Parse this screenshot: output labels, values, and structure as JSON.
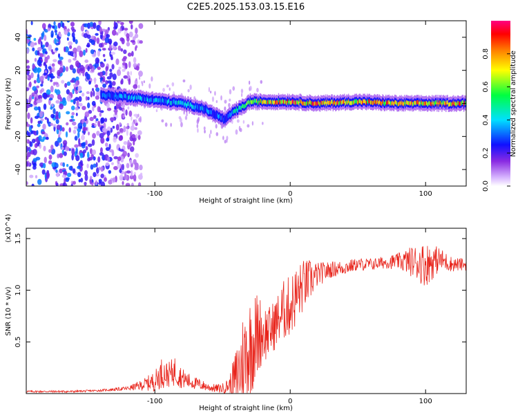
{
  "page": {
    "title": "C2E5.2025.153.03.15.E16"
  },
  "colorbar": {
    "label": "Normalized spectral amplitude",
    "ticks": [
      "0.0",
      "0.2",
      "0.4",
      "0.6",
      "0.8"
    ],
    "tick_values": [
      0.0,
      0.2,
      0.4,
      0.6,
      0.8
    ],
    "colormap": "rainbow (white-violet → violet → blue → cyan → green → yellow → red → magenta)"
  },
  "chart_data": [
    {
      "type": "heatmap",
      "name": "spectrogram",
      "title": "C2E5.2025.153.03.15.E16",
      "xlabel": "Height of straight line (km)",
      "ylabel": "Frequency (Hz)",
      "xlim": [
        -195,
        130
      ],
      "ylim": [
        -50,
        50
      ],
      "xticks": [
        -100,
        0,
        100
      ],
      "xtick_labels": [
        "-100",
        "0",
        "100"
      ],
      "yticks": [
        -40,
        -20,
        0,
        20,
        40
      ],
      "ytick_labels": [
        "-40",
        "-20",
        "0",
        "20",
        "40"
      ],
      "value_range": [
        0,
        1
      ],
      "ridge": {
        "description": "narrow high-amplitude band tracing the dominant frequency",
        "x": [
          -140,
          -120,
          -100,
          -80,
          -65,
          -55,
          -48,
          -42,
          -35,
          -30,
          -20,
          0,
          20,
          50,
          80,
          100,
          130
        ],
        "freq": [
          5,
          4,
          2,
          0,
          -3,
          -7,
          -10,
          -5,
          -2,
          1,
          1,
          1,
          0,
          1,
          0,
          0,
          0
        ],
        "peak_amplitude": [
          0.35,
          0.4,
          0.4,
          0.45,
          0.4,
          0.35,
          0.3,
          0.5,
          0.6,
          0.7,
          0.8,
          0.9,
          0.9,
          0.85,
          0.85,
          0.85,
          0.9
        ]
      },
      "noise_region": {
        "description": "scattered low-amplitude (violet) speckle across all frequencies",
        "x_range": [
          -195,
          -120
        ],
        "amplitude_range": [
          0.05,
          0.35
        ]
      }
    },
    {
      "type": "line",
      "name": "snr",
      "xlabel": "Height of straight line (km)",
      "ylabel": "SNR (10 * v/v)",
      "yscale_note": "(x10^4)",
      "xlim": [
        -195,
        130
      ],
      "ylim": [
        0,
        1.6
      ],
      "xticks": [
        -100,
        0,
        100
      ],
      "xtick_labels": [
        "-100",
        "0",
        "100"
      ],
      "yticks": [
        0.5,
        1.0,
        1.5
      ],
      "ytick_labels": [
        "0.5",
        "1.0",
        "1.5"
      ],
      "series": [
        {
          "color": "#e8231a",
          "x": [
            -195,
            -180,
            -160,
            -140,
            -120,
            -110,
            -100,
            -95,
            -90,
            -85,
            -80,
            -75,
            -70,
            -65,
            -60,
            -55,
            -50,
            -45,
            -40,
            -35,
            -30,
            -25,
            -22,
            -20,
            -15,
            -10,
            -5,
            0,
            5,
            10,
            15,
            20,
            30,
            40,
            50,
            60,
            70,
            80,
            90,
            100,
            110,
            120,
            130
          ],
          "y": [
            0.02,
            0.02,
            0.02,
            0.03,
            0.05,
            0.08,
            0.12,
            0.2,
            0.18,
            0.22,
            0.15,
            0.12,
            0.1,
            0.08,
            0.06,
            0.05,
            0.05,
            0.08,
            0.15,
            0.3,
            0.45,
            0.55,
            0.6,
            0.58,
            0.6,
            0.7,
            0.8,
            0.85,
            0.95,
            1.05,
            1.1,
            1.15,
            1.2,
            1.22,
            1.25,
            1.25,
            1.27,
            1.28,
            1.28,
            1.25,
            1.3,
            1.25,
            1.25
          ],
          "noise": [
            0.01,
            0.01,
            0.01,
            0.01,
            0.02,
            0.05,
            0.1,
            0.15,
            0.12,
            0.15,
            0.1,
            0.08,
            0.06,
            0.05,
            0.04,
            0.04,
            0.05,
            0.08,
            0.3,
            0.5,
            0.5,
            0.45,
            0.35,
            0.3,
            0.25,
            0.25,
            0.3,
            0.3,
            0.3,
            0.25,
            0.2,
            0.12,
            0.08,
            0.07,
            0.06,
            0.06,
            0.06,
            0.08,
            0.15,
            0.22,
            0.12,
            0.07,
            0.06
          ]
        }
      ]
    }
  ]
}
